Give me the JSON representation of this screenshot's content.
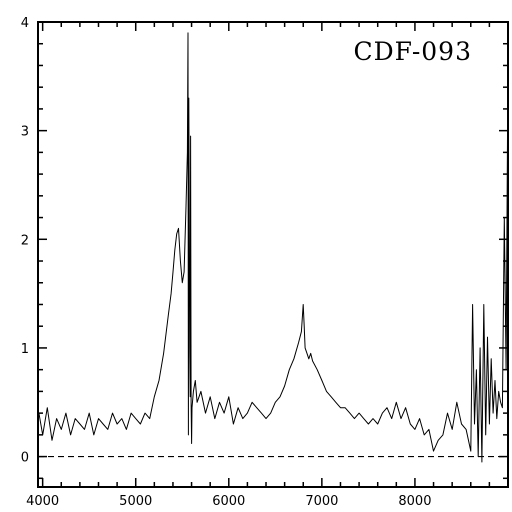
{
  "chart_data": {
    "type": "line",
    "title": "CDF-093",
    "xlabel": "",
    "ylabel": "",
    "xlim": [
      3950,
      9000
    ],
    "ylim": [
      -0.28,
      4.0
    ],
    "x_ticks": [
      {
        "value": 4000,
        "label": "4000"
      },
      {
        "value": 5000,
        "label": "5000"
      },
      {
        "value": 6000,
        "label": "6000"
      },
      {
        "value": 7000,
        "label": "7000"
      },
      {
        "value": 8000,
        "label": "8000"
      }
    ],
    "y_ticks": [
      {
        "value": 0,
        "label": "0"
      },
      {
        "value": 1,
        "label": "1"
      },
      {
        "value": 2,
        "label": "2"
      },
      {
        "value": 3,
        "label": "3"
      },
      {
        "value": 4,
        "label": "4"
      }
    ],
    "reference_line": {
      "y": 0,
      "style": "dashed"
    },
    "grid": false,
    "series": [
      {
        "x": [
          3960,
          4000,
          4050,
          4100,
          4150,
          4200,
          4250,
          4300,
          4350,
          4400,
          4450,
          4500,
          4550,
          4600,
          4650,
          4700,
          4750,
          4800,
          4850,
          4900,
          4950,
          5000,
          5050,
          5100,
          5150,
          5200,
          5250,
          5300,
          5350,
          5380,
          5400,
          5420,
          5440,
          5460,
          5480,
          5500,
          5520,
          5540,
          5555,
          5562,
          5566,
          5570,
          5575,
          5580,
          5585,
          5590,
          5595,
          5600,
          5605,
          5620,
          5640,
          5660,
          5700,
          5750,
          5800,
          5850,
          5900,
          5950,
          6000,
          6050,
          6100,
          6150,
          6200,
          6250,
          6300,
          6350,
          6400,
          6450,
          6500,
          6550,
          6600,
          6650,
          6700,
          6750,
          6780,
          6800,
          6810,
          6820,
          6840,
          6860,
          6880,
          6900,
          6950,
          7000,
          7050,
          7100,
          7150,
          7200,
          7250,
          7300,
          7350,
          7400,
          7450,
          7500,
          7550,
          7600,
          7650,
          7700,
          7750,
          7800,
          7850,
          7900,
          7950,
          8000,
          8050,
          8100,
          8150,
          8200,
          8250,
          8300,
          8350,
          8400,
          8450,
          8500,
          8550,
          8600,
          8620,
          8640,
          8660,
          8680,
          8700,
          8720,
          8740,
          8760,
          8780,
          8800,
          8820,
          8840,
          8860,
          8880,
          8900,
          8920,
          8940,
          8960,
          8980,
          8995
        ],
        "values": [
          0.4,
          0.2,
          0.45,
          0.15,
          0.35,
          0.25,
          0.4,
          0.2,
          0.35,
          0.3,
          0.25,
          0.4,
          0.2,
          0.35,
          0.3,
          0.25,
          0.4,
          0.3,
          0.35,
          0.25,
          0.4,
          0.35,
          0.3,
          0.4,
          0.35,
          0.55,
          0.7,
          0.95,
          1.3,
          1.5,
          1.7,
          1.9,
          2.05,
          2.1,
          1.8,
          1.6,
          1.7,
          2.3,
          2.8,
          3.9,
          0.2,
          3.3,
          2.4,
          1.0,
          0.55,
          2.95,
          0.5,
          0.12,
          0.45,
          0.6,
          0.7,
          0.5,
          0.6,
          0.4,
          0.55,
          0.35,
          0.5,
          0.4,
          0.55,
          0.3,
          0.45,
          0.35,
          0.4,
          0.5,
          0.45,
          0.4,
          0.35,
          0.4,
          0.5,
          0.55,
          0.65,
          0.8,
          0.9,
          1.05,
          1.15,
          1.4,
          1.2,
          1.0,
          0.95,
          0.9,
          0.95,
          0.88,
          0.8,
          0.7,
          0.6,
          0.55,
          0.5,
          0.45,
          0.45,
          0.4,
          0.35,
          0.4,
          0.35,
          0.3,
          0.35,
          0.3,
          0.4,
          0.45,
          0.35,
          0.5,
          0.35,
          0.45,
          0.3,
          0.25,
          0.35,
          0.2,
          0.25,
          0.05,
          0.15,
          0.2,
          0.4,
          0.25,
          0.5,
          0.3,
          0.25,
          0.05,
          1.4,
          0.3,
          0.8,
          0.0,
          1.0,
          -0.05,
          1.4,
          0.2,
          1.1,
          0.3,
          0.9,
          0.4,
          0.7,
          0.35,
          0.6,
          0.5,
          0.45,
          2.2,
          0.8,
          2.95
        ]
      }
    ]
  }
}
